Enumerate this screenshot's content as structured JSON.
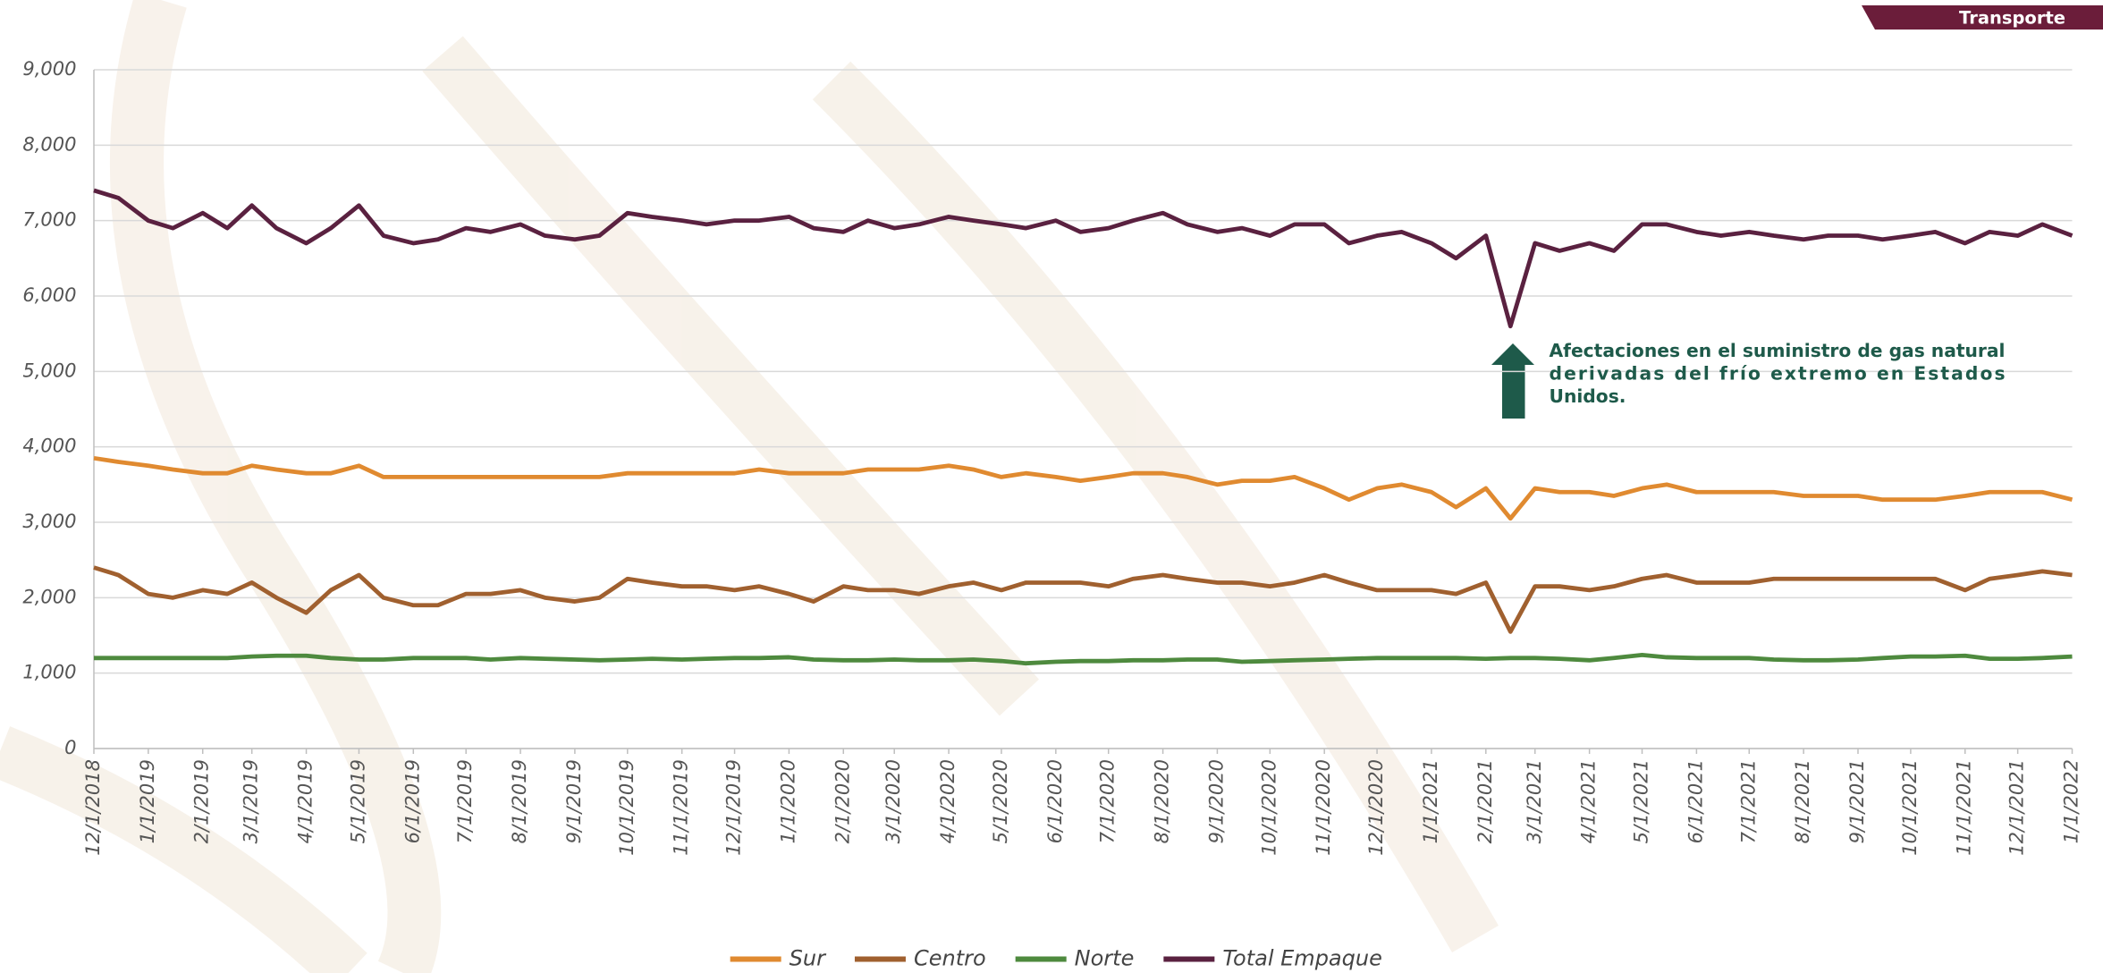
{
  "tab": "Transporte",
  "chart_data": {
    "type": "line",
    "annotation": [
      "Afectaciones en el suministro de gas natural",
      "derivadas del frío extremo en Estados",
      "Unidos."
    ],
    "x": [
      "12/1/2018",
      "12/15/2018",
      "1/1/2019",
      "1/15/2019",
      "2/1/2019",
      "2/15/2019",
      "3/1/2019",
      "3/15/2019",
      "4/1/2019",
      "4/15/2019",
      "5/1/2019",
      "5/15/2019",
      "6/1/2019",
      "6/15/2019",
      "7/1/2019",
      "7/15/2019",
      "8/1/2019",
      "8/15/2019",
      "9/1/2019",
      "9/15/2019",
      "10/1/2019",
      "10/15/2019",
      "11/1/2019",
      "11/15/2019",
      "12/1/2019",
      "12/15/2019",
      "1/1/2020",
      "1/15/2020",
      "2/1/2020",
      "2/15/2020",
      "3/1/2020",
      "3/15/2020",
      "4/1/2020",
      "4/15/2020",
      "5/1/2020",
      "5/15/2020",
      "6/1/2020",
      "6/15/2020",
      "7/1/2020",
      "7/15/2020",
      "8/1/2020",
      "8/15/2020",
      "9/1/2020",
      "9/15/2020",
      "10/1/2020",
      "10/15/2020",
      "11/1/2020",
      "11/15/2020",
      "12/1/2020",
      "12/15/2020",
      "1/1/2021",
      "1/15/2021",
      "2/1/2021",
      "2/15/2021",
      "3/1/2021",
      "3/15/2021",
      "4/1/2021",
      "4/15/2021",
      "5/1/2021",
      "5/15/2021",
      "6/1/2021",
      "6/15/2021",
      "7/1/2021",
      "7/15/2021",
      "8/1/2021",
      "8/15/2021",
      "9/1/2021",
      "9/15/2021",
      "10/1/2021",
      "10/15/2021",
      "11/1/2021",
      "11/15/2021",
      "12/1/2021",
      "12/15/2021",
      "1/1/2022"
    ],
    "xlim": [
      "12/1/2018",
      "1/1/2022"
    ],
    "xticks": [
      "12/1/2018",
      "1/1/2019",
      "2/1/2019",
      "3/1/2019",
      "4/1/2019",
      "5/1/2019",
      "6/1/2019",
      "7/1/2019",
      "8/1/2019",
      "9/1/2019",
      "10/1/2019",
      "11/1/2019",
      "12/1/2019",
      "1/1/2020",
      "2/1/2020",
      "3/1/2020",
      "4/1/2020",
      "5/1/2020",
      "6/1/2020",
      "7/1/2020",
      "8/1/2020",
      "9/1/2020",
      "10/1/2020",
      "11/1/2020",
      "12/1/2020",
      "1/1/2021",
      "2/1/2021",
      "3/1/2021",
      "4/1/2021",
      "5/1/2021",
      "6/1/2021",
      "7/1/2021",
      "8/1/2021",
      "9/1/2021",
      "10/1/2021",
      "11/1/2021",
      "12/1/2021",
      "1/1/2022"
    ],
    "ylim": [
      0,
      9000
    ],
    "yticks": [
      0,
      {
        "value": 1000,
        "label": "1,000"
      },
      {
        "value": 2000,
        "label": "2,000"
      },
      {
        "value": 3000,
        "label": "3,000"
      },
      {
        "value": 4000,
        "label": "4,000"
      },
      {
        "value": 5000,
        "label": "5,000"
      },
      {
        "value": 6000,
        "label": "6,000"
      },
      {
        "value": 7000,
        "label": "7,000"
      },
      {
        "value": 8000,
        "label": "8,000"
      },
      {
        "value": 9000,
        "label": "9,000"
      }
    ],
    "grid": true,
    "legend": "bottom",
    "series": [
      {
        "name": "Sur",
        "color": "#e08a30",
        "values": [
          3850,
          3800,
          3750,
          3700,
          3650,
          3650,
          3750,
          3700,
          3650,
          3650,
          3750,
          3600,
          3600,
          3600,
          3600,
          3600,
          3600,
          3600,
          3600,
          3600,
          3650,
          3650,
          3650,
          3650,
          3650,
          3700,
          3650,
          3650,
          3650,
          3700,
          3700,
          3700,
          3750,
          3700,
          3600,
          3650,
          3600,
          3550,
          3600,
          3650,
          3650,
          3600,
          3500,
          3550,
          3550,
          3600,
          3450,
          3300,
          3450,
          3500,
          3400,
          3200,
          3450,
          3050,
          3450,
          3400,
          3400,
          3350,
          3450,
          3500,
          3400,
          3400,
          3400,
          3400,
          3350,
          3350,
          3350,
          3300,
          3300,
          3300,
          3350,
          3400,
          3400,
          3400,
          3300
        ]
      },
      {
        "name": "Centro",
        "color": "#a0602f",
        "values": [
          2400,
          2300,
          2050,
          2000,
          2100,
          2050,
          2200,
          2000,
          1800,
          2100,
          2300,
          2000,
          1900,
          1900,
          2050,
          2050,
          2100,
          2000,
          1950,
          2000,
          2250,
          2200,
          2150,
          2150,
          2100,
          2150,
          2050,
          1950,
          2150,
          2100,
          2100,
          2050,
          2150,
          2200,
          2100,
          2200,
          2200,
          2200,
          2150,
          2250,
          2300,
          2250,
          2200,
          2200,
          2150,
          2200,
          2300,
          2200,
          2100,
          2100,
          2100,
          2050,
          2200,
          1550,
          2150,
          2150,
          2100,
          2150,
          2250,
          2300,
          2200,
          2200,
          2200,
          2250,
          2250,
          2250,
          2250,
          2250,
          2250,
          2250,
          2100,
          2250,
          2300,
          2350,
          2300
        ]
      },
      {
        "name": "Norte",
        "color": "#4e8a3e",
        "values": [
          1200,
          1200,
          1200,
          1200,
          1200,
          1200,
          1220,
          1230,
          1230,
          1200,
          1180,
          1180,
          1200,
          1200,
          1200,
          1180,
          1200,
          1190,
          1180,
          1170,
          1180,
          1190,
          1180,
          1190,
          1200,
          1200,
          1210,
          1180,
          1170,
          1170,
          1180,
          1170,
          1170,
          1180,
          1160,
          1130,
          1150,
          1160,
          1160,
          1170,
          1170,
          1180,
          1180,
          1150,
          1160,
          1170,
          1180,
          1190,
          1200,
          1200,
          1200,
          1200,
          1190,
          1200,
          1200,
          1190,
          1170,
          1200,
          1240,
          1210,
          1200,
          1200,
          1200,
          1180,
          1170,
          1170,
          1180,
          1200,
          1220,
          1220,
          1230,
          1190,
          1190,
          1200,
          1220
        ]
      },
      {
        "name": "Total Empaque",
        "color": "#5a2140",
        "values": [
          7400,
          7300,
          7000,
          6900,
          7100,
          6900,
          7200,
          6900,
          6700,
          6900,
          7200,
          6800,
          6700,
          6750,
          6900,
          6850,
          6950,
          6800,
          6750,
          6800,
          7100,
          7050,
          7000,
          6950,
          7000,
          7000,
          7050,
          6900,
          6850,
          7000,
          6900,
          6950,
          7050,
          7000,
          6950,
          6900,
          7000,
          6850,
          6900,
          7000,
          7100,
          6950,
          6850,
          6900,
          6800,
          6950,
          6950,
          6700,
          6800,
          6850,
          6700,
          6500,
          6800,
          5600,
          6700,
          6600,
          6700,
          6600,
          6950,
          6950,
          6850,
          6800,
          6850,
          6800,
          6750,
          6800,
          6800,
          6750,
          6800,
          6850,
          6700,
          6850,
          6800,
          6950,
          6800
        ]
      }
    ]
  }
}
